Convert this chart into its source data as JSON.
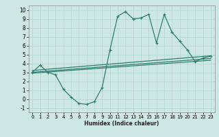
{
  "xlabel": "Humidex (Indice chaleur)",
  "ylabel": "",
  "bg_color": "#cde8e3",
  "grid_color": "#b0d8d0",
  "line_color": "#2e7d6e",
  "xlim": [
    -0.5,
    23.5
  ],
  "ylim": [
    -1.5,
    10.5
  ],
  "xticks": [
    0,
    1,
    2,
    3,
    4,
    5,
    6,
    7,
    8,
    9,
    10,
    11,
    12,
    13,
    14,
    15,
    16,
    17,
    18,
    19,
    20,
    21,
    22,
    23
  ],
  "yticks": [
    -1,
    0,
    1,
    2,
    3,
    4,
    5,
    6,
    7,
    8,
    9,
    10
  ],
  "line1_x": [
    0,
    1,
    2,
    3,
    4,
    5,
    6,
    7,
    8,
    9,
    10,
    11,
    12,
    13,
    14,
    15,
    16,
    17,
    18,
    19,
    20,
    21,
    22,
    23
  ],
  "line1_y": [
    3.0,
    3.8,
    3.0,
    2.7,
    1.1,
    0.2,
    -0.5,
    -0.6,
    -0.3,
    1.3,
    5.5,
    9.3,
    9.8,
    9.0,
    9.1,
    9.5,
    6.3,
    9.5,
    7.5,
    6.5,
    5.5,
    4.2,
    4.6,
    4.8
  ],
  "line2_x": [
    0,
    23
  ],
  "line2_y": [
    3.2,
    4.85
  ],
  "line3_x": [
    0,
    23
  ],
  "line3_y": [
    3.0,
    4.55
  ],
  "line4_x": [
    0,
    23
  ],
  "line4_y": [
    2.9,
    4.35
  ]
}
